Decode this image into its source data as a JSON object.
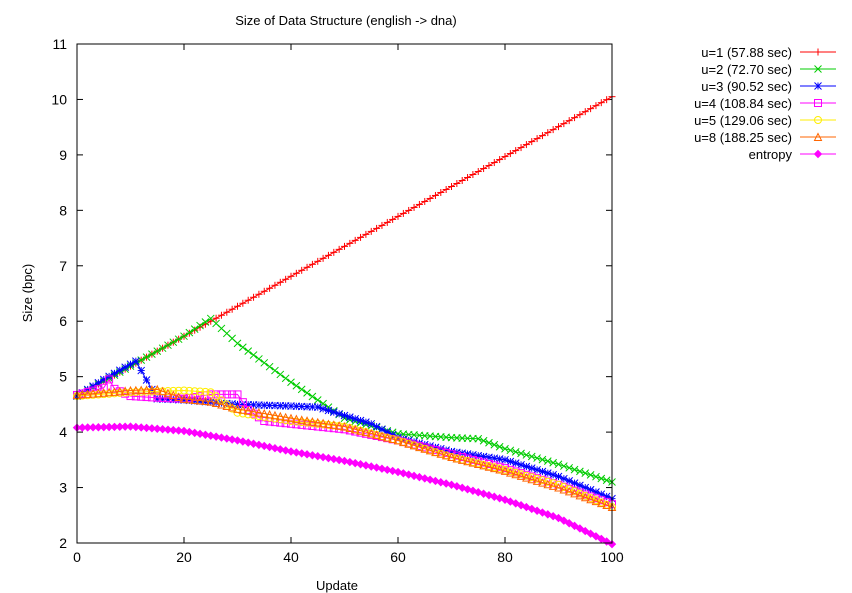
{
  "chart_data": {
    "type": "line",
    "title": "Size of Data Structure (english -> dna)",
    "xlabel": "Update",
    "ylabel": "Size (bpc)",
    "xlim": [
      0,
      100
    ],
    "ylim": [
      2,
      11
    ],
    "xticks": [
      "0",
      "20",
      "40",
      "60",
      "80",
      "100"
    ],
    "yticks": [
      "2",
      "3",
      "4",
      "5",
      "6",
      "7",
      "8",
      "9",
      "10",
      "11"
    ],
    "grid": false,
    "legend_position": "outside-top-right",
    "series": [
      {
        "name": "u=1 (57.88 sec)",
        "color": "#ff0000",
        "marker": "plus",
        "x": [
          0,
          10,
          20,
          30,
          40,
          50,
          60,
          70,
          80,
          90,
          100
        ],
        "y": [
          4.65,
          5.19,
          5.73,
          6.27,
          6.81,
          7.35,
          7.89,
          8.43,
          8.97,
          9.51,
          10.05
        ]
      },
      {
        "name": "u=2 (72.70 sec)",
        "color": "#00cc00",
        "marker": "x",
        "x": [
          0,
          10,
          20,
          25,
          30,
          40,
          47,
          50,
          60,
          70,
          75,
          80,
          90,
          100
        ],
        "y": [
          4.65,
          5.19,
          5.73,
          6.05,
          5.6,
          4.9,
          4.45,
          4.25,
          3.97,
          3.9,
          3.88,
          3.7,
          3.42,
          3.1
        ]
      },
      {
        "name": "u=3 (90.52 sec)",
        "color": "#0000ff",
        "marker": "asterisk",
        "x": [
          0,
          5,
          11,
          15,
          20,
          30,
          40,
          45,
          50,
          55,
          60,
          70,
          80,
          90,
          100
        ],
        "y": [
          4.65,
          4.95,
          5.28,
          4.6,
          4.58,
          4.5,
          4.47,
          4.45,
          4.3,
          4.15,
          3.9,
          3.65,
          3.5,
          3.2,
          2.8
        ]
      },
      {
        "name": "u=4 (108.84 sec)",
        "color": "#ff00ff",
        "marker": "square",
        "x": [
          0,
          5,
          6,
          7,
          10,
          15,
          20,
          25,
          30,
          32,
          35,
          40,
          50,
          60,
          70,
          80,
          90,
          100
        ],
        "y": [
          4.67,
          4.8,
          4.95,
          4.78,
          4.65,
          4.62,
          4.6,
          4.68,
          4.68,
          4.4,
          4.2,
          4.15,
          4.05,
          3.85,
          3.6,
          3.35,
          3.05,
          2.7
        ]
      },
      {
        "name": "u=5 (129.06 sec)",
        "color": "#ffee00",
        "marker": "circle",
        "x": [
          0,
          10,
          20,
          25,
          30,
          40,
          50,
          60,
          70,
          80,
          90,
          100
        ],
        "y": [
          4.65,
          4.72,
          4.75,
          4.72,
          4.35,
          4.2,
          4.1,
          3.85,
          3.55,
          3.32,
          3.05,
          2.65
        ]
      },
      {
        "name": "u=8 (188.25 sec)",
        "color": "#ff6600",
        "marker": "triangle",
        "x": [
          0,
          10,
          15,
          20,
          25,
          30,
          40,
          50,
          60,
          70,
          80,
          90,
          100
        ],
        "y": [
          4.67,
          4.75,
          4.77,
          4.6,
          4.55,
          4.42,
          4.25,
          4.1,
          3.85,
          3.55,
          3.3,
          3.0,
          2.65
        ]
      },
      {
        "name": "entropy",
        "color": "#ff00ff",
        "marker": "diamond",
        "x": [
          0,
          10,
          20,
          30,
          40,
          50,
          60,
          70,
          80,
          90,
          100
        ],
        "y": [
          4.08,
          4.1,
          4.02,
          3.85,
          3.65,
          3.48,
          3.28,
          3.05,
          2.78,
          2.45,
          1.98
        ]
      }
    ]
  }
}
